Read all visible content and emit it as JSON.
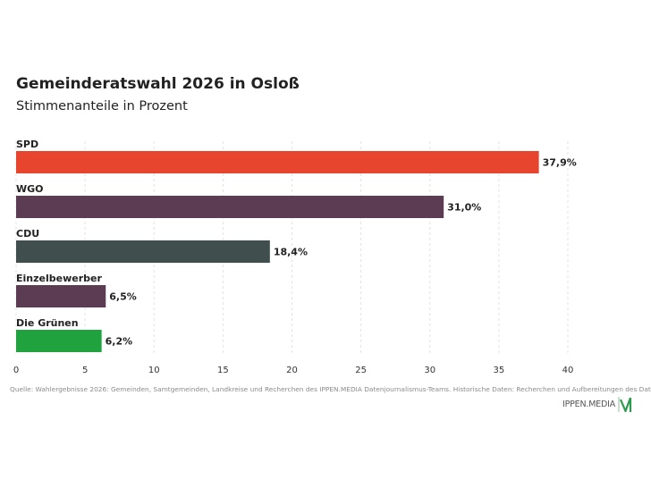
{
  "header": {
    "title": "Gemeinderatswahl 2026 in Osloß",
    "subtitle": "Stimmenanteile in Prozent"
  },
  "chart_data": {
    "type": "bar",
    "orientation": "horizontal",
    "title": "Gemeinderatswahl 2026 in Osloß",
    "subtitle": "Stimmenanteile in Prozent",
    "categories": [
      "SPD",
      "WGO",
      "CDU",
      "Einzelbewerber",
      "Die Grünen"
    ],
    "values": [
      37.9,
      31.0,
      18.4,
      6.5,
      6.2
    ],
    "value_labels": [
      "37,9%",
      "31,0%",
      "18,4%",
      "6,5%",
      "6,2%"
    ],
    "colors": [
      "#e8452f",
      "#5b3c52",
      "#404f4e",
      "#5b3c52",
      "#20a33f"
    ],
    "xlim": [
      0,
      40
    ],
    "xticks": [
      0,
      5,
      10,
      15,
      20,
      25,
      30,
      35,
      40
    ],
    "grid": "vertical-dashed",
    "legend": "none"
  },
  "footer": {
    "source": "Quelle: Wahlergebnisse 2026: Gemeinden, Samtgemeinden, Landkreise und Recherchen des IPPEN.MEDIA Datenjournalismus-Teams. Historische Daten: Recherchen und Aufbereitungen des Datenjournalismus-Teams",
    "logo_text": "IPPEN.MEDIA",
    "logo_icon": "ippen-m-logo-icon"
  }
}
